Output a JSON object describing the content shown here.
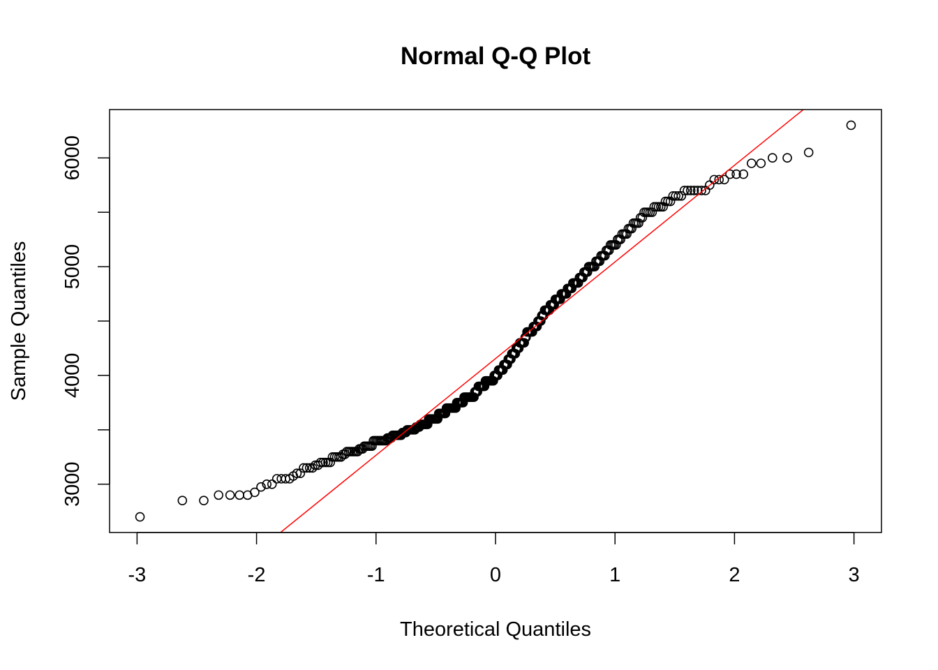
{
  "chart_data": {
    "type": "scatter",
    "title": "Normal Q-Q Plot",
    "xlabel": "Theoretical Quantiles",
    "ylabel": "Sample Quantiles",
    "xlim": [
      -3.23,
      3.23
    ],
    "ylim": [
      2556,
      6444
    ],
    "x_ticks": [
      -3,
      -2,
      -1,
      0,
      1,
      2,
      3
    ],
    "x_tick_labels": [
      "-3",
      "-2",
      "-1",
      "0",
      "1",
      "2",
      "3"
    ],
    "y_ticks": [
      3000,
      3500,
      4000,
      4500,
      5000,
      5500,
      6000
    ],
    "y_tick_labels": [
      "3000",
      "",
      "4000",
      "",
      "5000",
      "",
      "6000"
    ],
    "grid": false,
    "point_style": "open-circle",
    "point_color": "#000000",
    "reference_line": {
      "intercept": 4155,
      "slope": 888.5,
      "color": "#ff0000"
    },
    "sample_values_sorted_counts": [
      [
        2700,
        1
      ],
      [
        2850,
        2
      ],
      [
        2900,
        4
      ],
      [
        2925,
        1
      ],
      [
        2975,
        1
      ],
      [
        3000,
        2
      ],
      [
        3050,
        4
      ],
      [
        3075,
        1
      ],
      [
        3100,
        2
      ],
      [
        3150,
        4
      ],
      [
        3175,
        2
      ],
      [
        3200,
        5
      ],
      [
        3250,
        5
      ],
      [
        3275,
        2
      ],
      [
        3300,
        7
      ],
      [
        3325,
        3
      ],
      [
        3350,
        6
      ],
      [
        3400,
        10
      ],
      [
        3425,
        4
      ],
      [
        3450,
        8
      ],
      [
        3475,
        4
      ],
      [
        3500,
        8
      ],
      [
        3525,
        4
      ],
      [
        3550,
        8
      ],
      [
        3600,
        10
      ],
      [
        3650,
        8
      ],
      [
        3700,
        11
      ],
      [
        3750,
        8
      ],
      [
        3800,
        12
      ],
      [
        3850,
        4
      ],
      [
        3900,
        8
      ],
      [
        3950,
        10
      ],
      [
        4000,
        5
      ],
      [
        4050,
        6
      ],
      [
        4100,
        5
      ],
      [
        4150,
        4
      ],
      [
        4200,
        5
      ],
      [
        4250,
        4
      ],
      [
        4300,
        6
      ],
      [
        4350,
        2
      ],
      [
        4400,
        7
      ],
      [
        4450,
        5
      ],
      [
        4500,
        4
      ],
      [
        4550,
        3
      ],
      [
        4600,
        6
      ],
      [
        4650,
        5
      ],
      [
        4700,
        6
      ],
      [
        4750,
        6
      ],
      [
        4800,
        5
      ],
      [
        4850,
        6
      ],
      [
        4900,
        4
      ],
      [
        4950,
        4
      ],
      [
        5000,
        6
      ],
      [
        5050,
        4
      ],
      [
        5100,
        4
      ],
      [
        5150,
        3
      ],
      [
        5200,
        5
      ],
      [
        5250,
        3
      ],
      [
        5300,
        4
      ],
      [
        5350,
        3
      ],
      [
        5400,
        4
      ],
      [
        5450,
        2
      ],
      [
        5500,
        5
      ],
      [
        5550,
        5
      ],
      [
        5600,
        3
      ],
      [
        5650,
        4
      ],
      [
        5700,
        7
      ],
      [
        5750,
        1
      ],
      [
        5800,
        3
      ],
      [
        5850,
        3
      ],
      [
        5950,
        2
      ],
      [
        6000,
        2
      ],
      [
        6050,
        1
      ],
      [
        6300,
        1
      ]
    ]
  }
}
